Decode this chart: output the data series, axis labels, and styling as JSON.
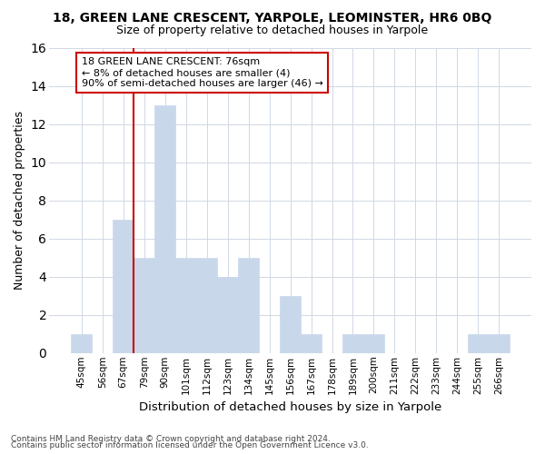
{
  "title1": "18, GREEN LANE CRESCENT, YARPOLE, LEOMINSTER, HR6 0BQ",
  "title2": "Size of property relative to detached houses in Yarpole",
  "xlabel": "Distribution of detached houses by size in Yarpole",
  "ylabel": "Number of detached properties",
  "categories": [
    "45sqm",
    "56sqm",
    "67sqm",
    "79sqm",
    "90sqm",
    "101sqm",
    "112sqm",
    "123sqm",
    "134sqm",
    "145sqm",
    "156sqm",
    "167sqm",
    "178sqm",
    "189sqm",
    "200sqm",
    "211sqm",
    "222sqm",
    "233sqm",
    "244sqm",
    "255sqm",
    "266sqm"
  ],
  "values": [
    1,
    0,
    7,
    5,
    13,
    5,
    5,
    4,
    5,
    0,
    3,
    1,
    0,
    1,
    1,
    0,
    0,
    0,
    0,
    1,
    1
  ],
  "bar_color": "#c8d8ea",
  "bar_edge_color": "#c8d8ea",
  "grid_color": "#d0d8e4",
  "vline_color": "#cc0000",
  "annotation_text": "18 GREEN LANE CRESCENT: 76sqm\n← 8% of detached houses are smaller (4)\n90% of semi-detached houses are larger (46) →",
  "annotation_box_color": "white",
  "annotation_box_edge": "#cc0000",
  "ylim": [
    0,
    16
  ],
  "yticks": [
    0,
    2,
    4,
    6,
    8,
    10,
    12,
    14,
    16
  ],
  "footer1": "Contains HM Land Registry data © Crown copyright and database right 2024.",
  "footer2": "Contains public sector information licensed under the Open Government Licence v3.0.",
  "bg_color": "#ffffff"
}
